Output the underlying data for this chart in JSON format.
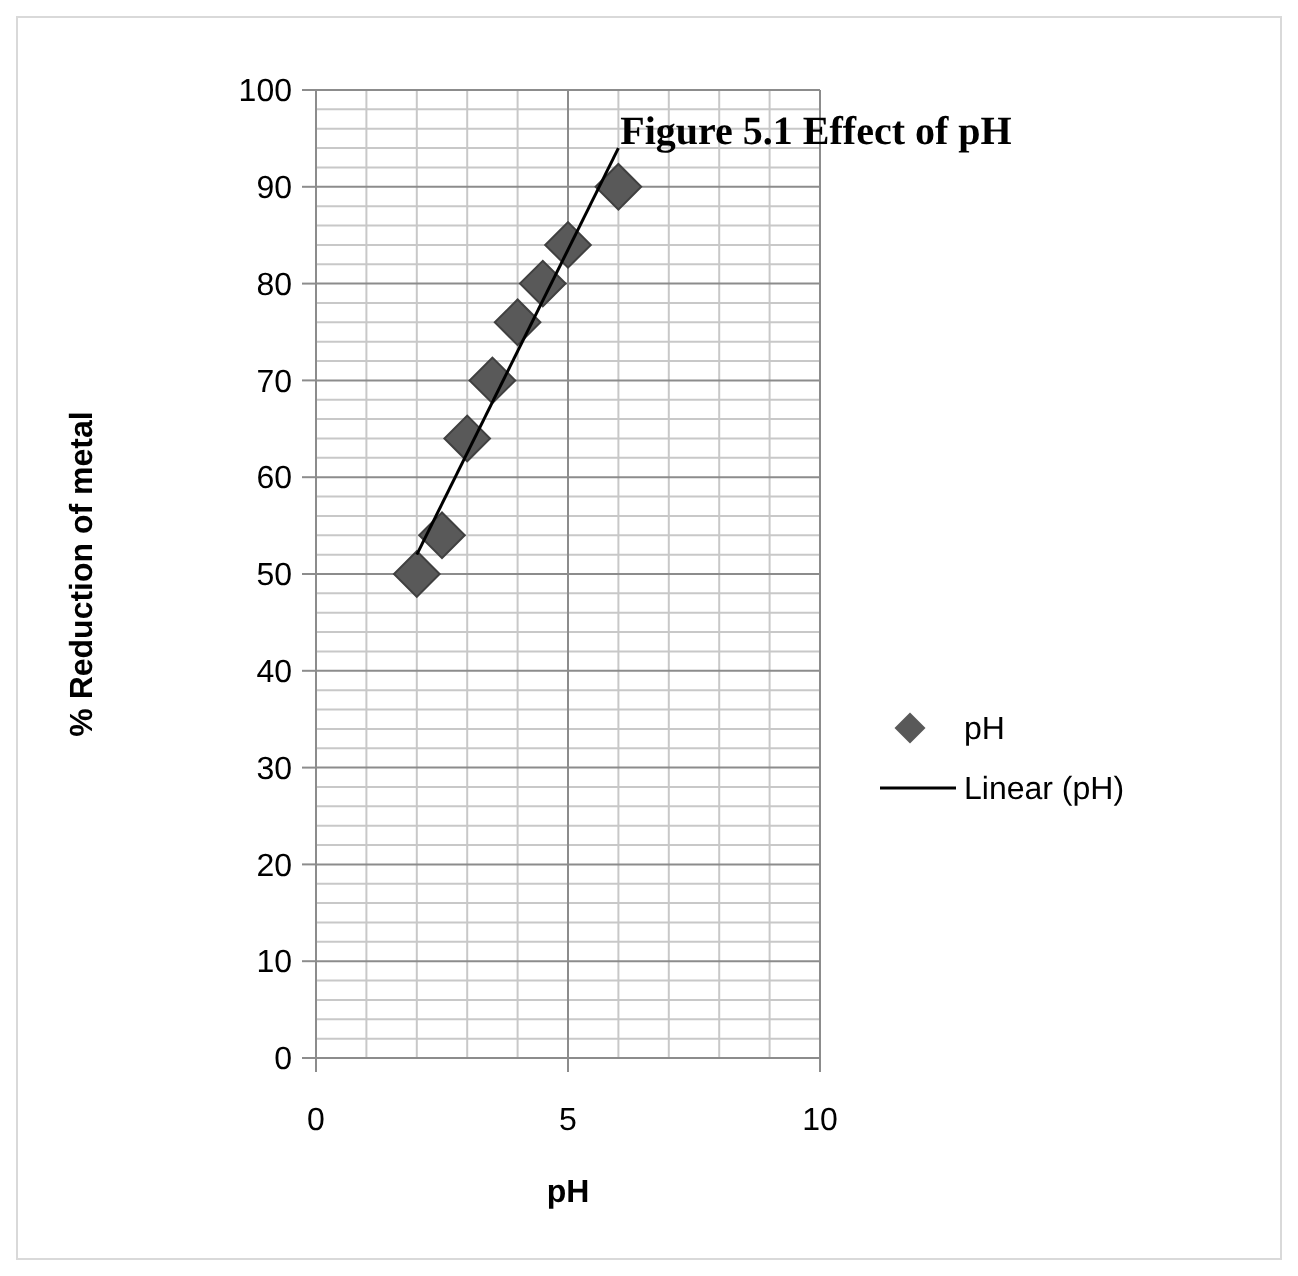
{
  "chart_data": {
    "type": "scatter",
    "title": "Figure 5.1 Effect of pH",
    "xlabel": "pH",
    "ylabel": "% Reduction of metal",
    "xlim": [
      0,
      10
    ],
    "xticks": [
      0,
      5,
      10
    ],
    "ylim": [
      0,
      100
    ],
    "yticks": [
      0,
      10,
      20,
      30,
      40,
      50,
      60,
      70,
      80,
      90,
      100
    ],
    "grid": true,
    "legend": "right",
    "series": [
      {
        "name": "pH",
        "marker": "diamond",
        "color": "#595959",
        "x": [
          2,
          2.5,
          3,
          3.5,
          4,
          4.5,
          5,
          6
        ],
        "values": [
          50,
          54,
          64,
          70,
          76,
          80,
          84,
          90
        ]
      },
      {
        "name": "Linear (pH)",
        "type": "line",
        "color": "#000000",
        "x": [
          2,
          6
        ],
        "values": [
          52,
          94
        ],
        "line_style": "solid",
        "marker": "none"
      }
    ]
  }
}
